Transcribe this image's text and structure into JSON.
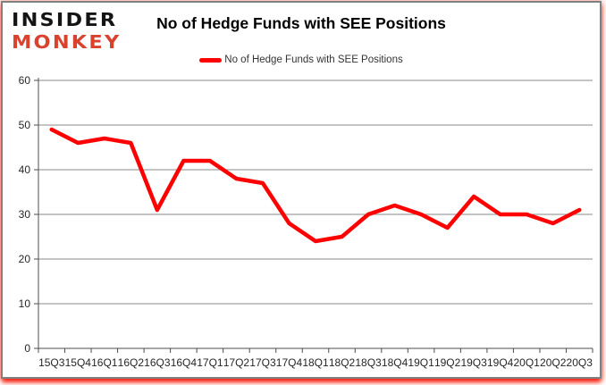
{
  "logo": {
    "line1": "INSIDER",
    "line2": "MONKEY"
  },
  "header": {
    "title": "No of Hedge Funds with SEE Positions"
  },
  "legend": {
    "label": "No of Hedge Funds with SEE Positions",
    "swatch_color": "#ff0000"
  },
  "chart_data": {
    "type": "line",
    "title": "No of Hedge Funds with SEE Positions",
    "categories": [
      "15Q3",
      "15Q4",
      "16Q1",
      "16Q2",
      "16Q3",
      "16Q4",
      "17Q1",
      "17Q2",
      "17Q3",
      "17Q4",
      "18Q1",
      "18Q2",
      "18Q3",
      "18Q4",
      "19Q1",
      "19Q2",
      "19Q3",
      "19Q4",
      "20Q1",
      "20Q2",
      "20Q3"
    ],
    "values": [
      49,
      46,
      47,
      46,
      31,
      42,
      42,
      38,
      37,
      28,
      24,
      25,
      30,
      32,
      30,
      27,
      34,
      30,
      30,
      28,
      31
    ],
    "series": [
      {
        "name": "No of Hedge Funds with SEE Positions",
        "color": "#ff0000"
      }
    ],
    "xlabel": "",
    "ylabel": "",
    "ylim": [
      0,
      60
    ],
    "yticks": [
      0,
      10,
      20,
      30,
      40,
      50,
      60
    ],
    "grid": true,
    "legend_position": "top"
  },
  "colors": {
    "series_line": "#ff0000",
    "gridline": "#8a8a8a",
    "axis_line": "#4d4d4d",
    "axis_label": "#262626",
    "logo_insider": "#141414",
    "logo_monkey": "#d9432e",
    "frame_border": "#808080",
    "frame_glow": "#f5190a"
  }
}
